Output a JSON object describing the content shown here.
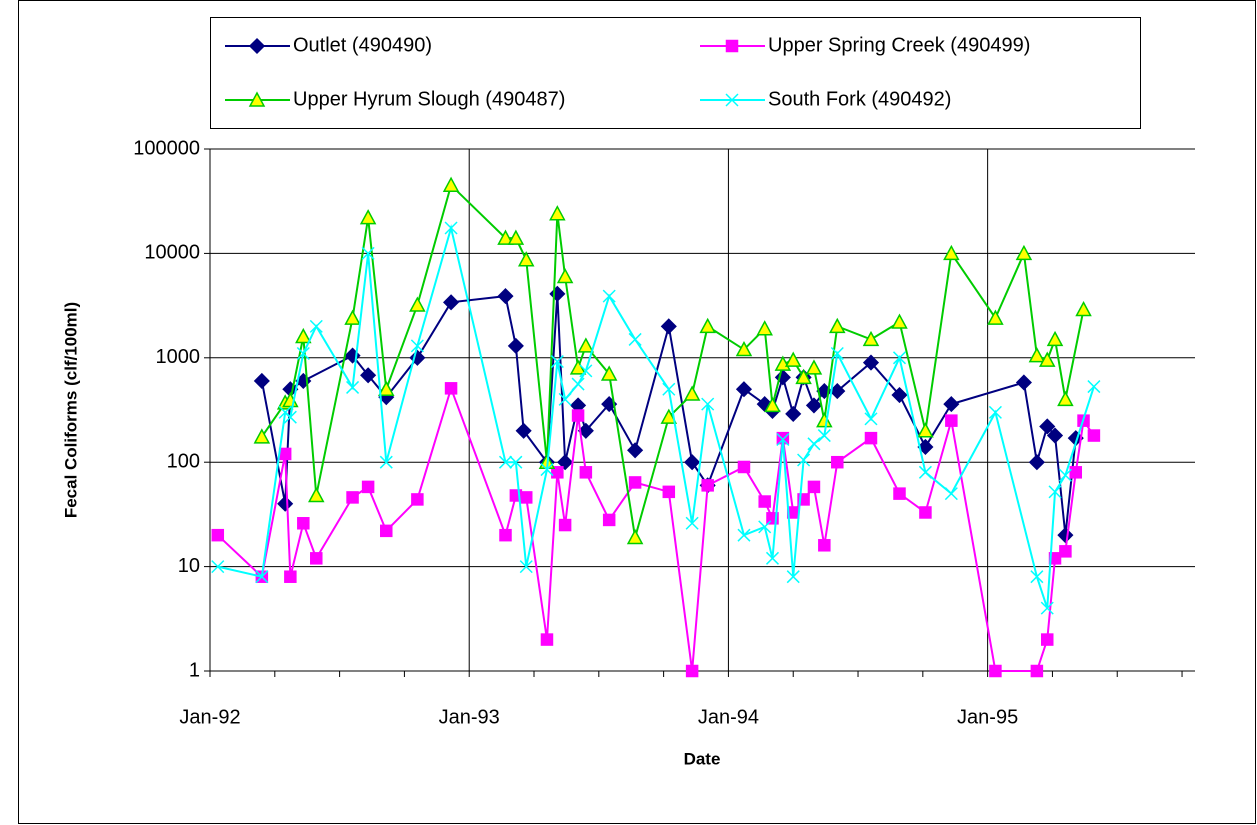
{
  "chart_data": {
    "type": "line",
    "x_label": "Date",
    "y_label": "Fecal Coliforms (clf/100ml)",
    "log_y": true,
    "grid": true,
    "legend": "top",
    "xlim": [
      1992,
      1995.8
    ],
    "xticks": [
      {
        "value": 1992,
        "label": "Jan-92"
      },
      {
        "value": 1993,
        "label": "Jan-93"
      },
      {
        "value": 1994,
        "label": "Jan-94"
      },
      {
        "value": 1995,
        "label": "Jan-95"
      }
    ],
    "ylim": [
      1,
      100000
    ],
    "yticks": [
      1,
      10,
      100,
      1000,
      10000,
      100000
    ],
    "series": [
      {
        "name": "Outlet (490490)",
        "color": "#000080",
        "marker": "diamond",
        "marker_fill": "#000080",
        "x": [
          1992.2,
          1992.29,
          1992.31,
          1992.36,
          1992.55,
          1992.61,
          1992.68,
          1992.8,
          1992.93,
          1993.14,
          1993.18,
          1993.21,
          1993.3,
          1993.34,
          1993.37,
          1993.42,
          1993.45,
          1993.54,
          1993.64,
          1993.77,
          1993.86,
          1993.92,
          1994.06,
          1994.14,
          1994.17,
          1994.21,
          1994.25,
          1994.29,
          1994.33,
          1994.37,
          1994.42,
          1994.55,
          1994.66,
          1994.76,
          1994.86,
          1995.14,
          1995.19,
          1995.23,
          1995.26,
          1995.3,
          1995.34
        ],
        "values": [
          600,
          40,
          500,
          600,
          1050,
          680,
          420,
          1000,
          3400,
          3900,
          1300,
          200,
          100,
          4100,
          100,
          350,
          200,
          360,
          130,
          2000,
          100,
          60,
          500,
          360,
          310,
          650,
          290,
          650,
          350,
          480,
          480,
          900,
          440,
          140,
          360,
          580,
          100,
          220,
          180,
          20,
          170
        ]
      },
      {
        "name": "Upper Spring Creek (490499)",
        "color": "#FF00FF",
        "marker": "square",
        "marker_fill": "#FF00FF",
        "x": [
          1992.03,
          1992.2,
          1992.29,
          1992.31,
          1992.36,
          1992.41,
          1992.55,
          1992.61,
          1992.68,
          1992.8,
          1992.93,
          1993.14,
          1993.18,
          1993.22,
          1993.3,
          1993.34,
          1993.37,
          1993.42,
          1993.45,
          1993.54,
          1993.64,
          1993.77,
          1993.86,
          1993.92,
          1994.06,
          1994.14,
          1994.17,
          1994.21,
          1994.25,
          1994.29,
          1994.33,
          1994.37,
          1994.42,
          1994.55,
          1994.66,
          1994.76,
          1994.86,
          1995.03,
          1995.19,
          1995.23,
          1995.26,
          1995.3,
          1995.34,
          1995.37,
          1995.41
        ],
        "values": [
          20,
          8,
          120,
          8,
          26,
          12,
          46,
          58,
          22,
          44,
          510,
          20,
          48,
          46,
          2,
          80,
          25,
          280,
          80,
          28,
          64,
          52,
          1,
          60,
          90,
          42,
          29,
          170,
          33,
          44,
          58,
          16,
          100,
          170,
          50,
          33,
          250,
          1,
          1,
          2,
          12,
          14,
          80,
          250,
          180
        ]
      },
      {
        "name": "Upper Hyrum Slough (490487)",
        "color": "#00CC00",
        "marker": "triangle",
        "marker_fill": "#FFFF00",
        "x": [
          1992.2,
          1992.29,
          1992.31,
          1992.36,
          1992.41,
          1992.55,
          1992.61,
          1992.68,
          1992.8,
          1992.93,
          1993.14,
          1993.18,
          1993.22,
          1993.3,
          1993.34,
          1993.37,
          1993.42,
          1993.45,
          1993.54,
          1993.64,
          1993.77,
          1993.86,
          1993.92,
          1994.06,
          1994.14,
          1994.17,
          1994.21,
          1994.25,
          1994.29,
          1994.33,
          1994.37,
          1994.42,
          1994.55,
          1994.66,
          1994.76,
          1994.86,
          1995.03,
          1995.14,
          1995.19,
          1995.23,
          1995.26,
          1995.3,
          1995.37
        ],
        "values": [
          175,
          370,
          390,
          1600,
          48,
          2400,
          22000,
          500,
          3200,
          45000,
          14000,
          14000,
          8700,
          100,
          24000,
          6000,
          800,
          1300,
          700,
          19,
          270,
          450,
          2000,
          1200,
          1900,
          350,
          870,
          950,
          650,
          800,
          250,
          2000,
          1500,
          2200,
          200,
          10000,
          2400,
          10000,
          1050,
          950,
          1500,
          400,
          2900
        ]
      },
      {
        "name": "South Fork (490492)",
        "color": "#00FFFF",
        "marker": "x",
        "marker_fill": "#00FFFF",
        "x": [
          1992.03,
          1992.2,
          1992.29,
          1992.31,
          1992.36,
          1992.41,
          1992.55,
          1992.61,
          1992.68,
          1992.8,
          1992.93,
          1993.14,
          1993.18,
          1993.22,
          1993.3,
          1993.34,
          1993.37,
          1993.42,
          1993.45,
          1993.54,
          1993.64,
          1993.77,
          1993.86,
          1993.92,
          1994.06,
          1994.14,
          1994.17,
          1994.21,
          1994.25,
          1994.29,
          1994.33,
          1994.37,
          1994.42,
          1994.55,
          1994.66,
          1994.76,
          1994.86,
          1995.03,
          1995.19,
          1995.23,
          1995.26,
          1995.3,
          1995.41
        ],
        "values": [
          10,
          8,
          300,
          270,
          1100,
          2000,
          520,
          10000,
          100,
          1300,
          17500,
          100,
          100,
          10,
          85,
          920,
          400,
          560,
          750,
          3900,
          1500,
          500,
          26,
          360,
          20,
          24,
          12,
          165,
          8,
          105,
          150,
          180,
          1100,
          260,
          1000,
          80,
          50,
          300,
          8,
          4,
          52,
          75,
          530
        ]
      }
    ]
  }
}
